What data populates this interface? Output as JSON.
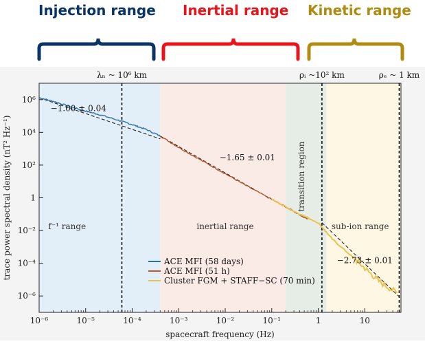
{
  "header": {
    "injection_label": "Injection range",
    "inertial_label": "Inertial range",
    "kinetic_label": "Kinetic range",
    "injection_color": "#0b3466",
    "inertial_color": "#e8141c",
    "kinetic_color": "#b08b12"
  },
  "chart_data": {
    "type": "line",
    "xscale": "log",
    "yscale": "log",
    "xlim": [
      1e-06,
      60
    ],
    "ylim": [
      1e-07,
      10000000.0
    ],
    "xlabel": "spacecraft frequency (Hz)",
    "ylabel": "trace power spectral density (nT² Hz⁻¹)",
    "x_ticks": [
      {
        "value": 1e-06,
        "label": "10⁻⁶"
      },
      {
        "value": 1e-05,
        "label": "10⁻⁵"
      },
      {
        "value": 0.0001,
        "label": "10⁻⁴"
      },
      {
        "value": 0.001,
        "label": "10⁻³"
      },
      {
        "value": 0.01,
        "label": "10⁻²"
      },
      {
        "value": 0.1,
        "label": "10⁻¹"
      },
      {
        "value": 1,
        "label": "1"
      },
      {
        "value": 10,
        "label": "10"
      }
    ],
    "y_ticks": [
      {
        "value": 1000000.0,
        "label": "10⁶"
      },
      {
        "value": 10000.0,
        "label": "10⁴"
      },
      {
        "value": 100.0,
        "label": "10²"
      },
      {
        "value": 1,
        "label": "1"
      },
      {
        "value": 0.01,
        "label": "10⁻²"
      },
      {
        "value": 0.0001,
        "label": "10⁻⁴"
      },
      {
        "value": 1e-06,
        "label": "10⁻⁶"
      }
    ],
    "regions": [
      {
        "from": 1e-06,
        "to": 0.0004,
        "color": "#e2eef8",
        "label": "f⁻¹ range",
        "label_x": 4e-06,
        "label_y": 0.012,
        "vertical": false
      },
      {
        "from": 0.0004,
        "to": 0.2,
        "color": "#fbebe7",
        "label": "inertial range",
        "label_x": 0.01,
        "label_y": 0.012,
        "vertical": false
      },
      {
        "from": 0.2,
        "to": 1.5,
        "color": "#e5ede6",
        "label": "transition region",
        "label_x": 0.5,
        "label_y": 20,
        "vertical": true
      },
      {
        "from": 1.5,
        "to": 60,
        "color": "#fdf7e3",
        "label": "sub-ion range",
        "label_x": 8,
        "label_y": 0.012,
        "vertical": false
      }
    ],
    "vertical_markers": [
      {
        "x": 6e-05,
        "label": "λₙ ~ 10⁶ km"
      },
      {
        "x": 1.2,
        "label": "ρᵢ ~10² km"
      },
      {
        "x": 55,
        "label": "ρₑ ~ 1 km"
      }
    ],
    "fit_annotations": [
      {
        "text": "−1.00 ± 0.04",
        "x": 7e-06,
        "y": 200000.0
      },
      {
        "text": "−1.65 ± 0.01",
        "x": 0.03,
        "y": 200
      },
      {
        "text": "−2.73 ± 0.01",
        "x": 10,
        "y": 0.0001
      }
    ],
    "series": [
      {
        "name": "ACE MFI (58 days)",
        "color": "#2e6fa8",
        "x": [
          1e-06,
          2e-06,
          5e-06,
          1e-05,
          2e-05,
          5e-05,
          0.0001,
          0.0002,
          0.0004
        ],
        "y": [
          1300000.0,
          800000.0,
          350000.0,
          200000.0,
          120000.0,
          55000.0,
          30000.0,
          15000.0,
          6000.0
        ]
      },
      {
        "name": "ACE MFI (51 h)",
        "color": "#b5582e",
        "x": [
          0.0004,
          0.001,
          0.003,
          0.01,
          0.03,
          0.1,
          0.3,
          0.6
        ],
        "y": [
          6000.0,
          1200.0,
          200,
          30,
          5,
          0.8,
          0.15,
          0.05
        ]
      },
      {
        "name": "Cluster FGM + STAFF−SC (70 min)",
        "color": "#e9c24f",
        "x": [
          0.1,
          0.3,
          1,
          2,
          5,
          10,
          20,
          50
        ],
        "y": [
          0.8,
          0.15,
          0.03,
          0.003,
          0.0003,
          5e-05,
          8e-06,
          1.5e-06
        ]
      }
    ],
    "fit_lines": [
      {
        "x": [
          1e-06,
          0.0004
        ],
        "y": [
          1300000.0,
          4000.0
        ]
      },
      {
        "x": [
          0.0004,
          0.5
        ],
        "y": [
          6000.0,
          0.06
        ]
      },
      {
        "x": [
          1.2,
          55
        ],
        "y": [
          0.03,
          9e-07
        ]
      }
    ],
    "legend_position": "lower-left inside"
  }
}
